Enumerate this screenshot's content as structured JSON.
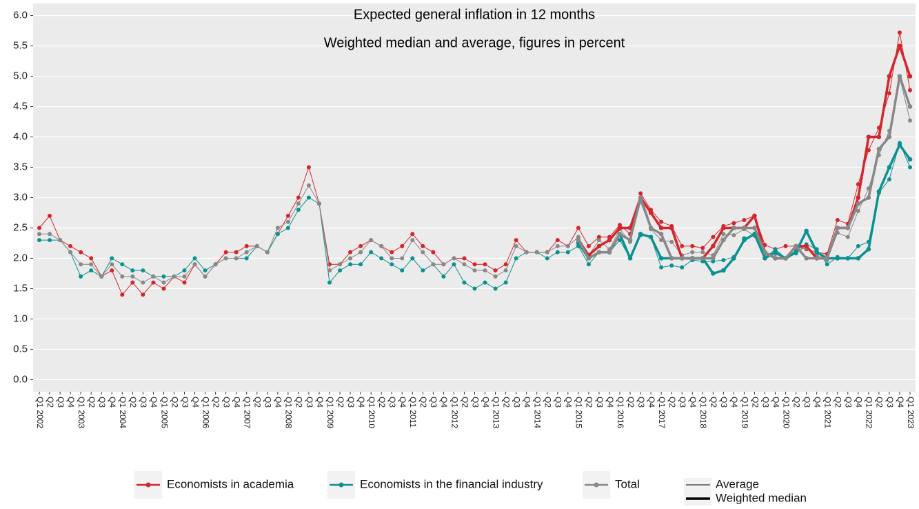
{
  "chart_data": {
    "type": "line",
    "title": "Expected general inflation in 12 months",
    "subtitle": "Weighted median and average, figures in percent",
    "categories": [
      "Q1 2002",
      "Q2",
      "Q3",
      "Q4",
      "Q1 2003",
      "Q2",
      "Q3",
      "Q4",
      "Q1 2004",
      "Q2",
      "Q3",
      "Q4",
      "Q1 2005",
      "Q2",
      "Q3",
      "Q4",
      "Q1 2006",
      "Q2",
      "Q3",
      "Q4",
      "Q1 2007",
      "Q2",
      "Q3",
      "Q4",
      "Q1 2008",
      "Q2",
      "Q3",
      "Q4",
      "Q1 2009",
      "Q2",
      "Q3",
      "Q4",
      "Q1 2010",
      "Q2",
      "Q3",
      "Q4",
      "Q1 2011",
      "Q2",
      "Q3",
      "Q4",
      "Q1 2012",
      "Q2",
      "Q3",
      "Q4",
      "Q1 2013",
      "Q2",
      "Q3",
      "Q4",
      "Q1 2014",
      "Q2",
      "Q3",
      "Q4",
      "Q1 2015",
      "Q2",
      "Q3",
      "Q4",
      "Q1 2016",
      "Q2",
      "Q3",
      "Q4",
      "Q1 2017",
      "Q2",
      "Q3",
      "Q4",
      "Q1 2018",
      "Q2",
      "Q3",
      "Q4",
      "Q1 2019",
      "Q2",
      "Q3",
      "Q4",
      "Q1 2020",
      "Q2",
      "Q3",
      "Q4",
      "Q1 2021",
      "Q2",
      "Q3",
      "Q4",
      "Q1 2022",
      "Q2",
      "Q3",
      "Q4",
      "Q1 2023"
    ],
    "series": [
      {
        "name": "Economists in academia",
        "color": "#d3262c",
        "values": [
          2.5,
          2.7,
          2.3,
          2.2,
          2.1,
          2.0,
          1.7,
          1.8,
          1.4,
          1.6,
          1.4,
          1.6,
          1.5,
          1.7,
          1.6,
          1.9,
          1.7,
          1.9,
          2.1,
          2.1,
          2.2,
          2.2,
          2.1,
          2.4,
          2.7,
          3.0,
          3.5,
          2.9,
          1.9,
          1.9,
          2.1,
          2.2,
          2.3,
          2.2,
          2.1,
          2.2,
          2.4,
          2.2,
          2.1,
          1.9,
          2.0,
          2.0,
          1.9,
          1.9,
          1.8,
          1.9,
          2.3,
          2.1,
          2.1,
          2.1,
          2.3,
          2.2,
          2.5,
          2.2,
          2.35,
          2.35,
          2.55,
          2.4,
          3.07,
          2.8,
          2.6,
          2.53,
          2.2,
          2.2,
          2.17,
          2.35,
          2.53,
          2.58,
          2.63,
          2.7,
          2.22,
          2.15,
          2.2,
          2.2,
          2.15,
          2.1,
          2.07,
          2.63,
          2.57,
          3.22,
          3.78,
          4.15,
          4.72,
          5.72,
          4.77
        ],
        "weighted_median": [
          null,
          null,
          null,
          null,
          null,
          null,
          null,
          null,
          null,
          null,
          null,
          null,
          null,
          null,
          null,
          null,
          null,
          null,
          null,
          null,
          null,
          null,
          null,
          null,
          null,
          null,
          null,
          null,
          null,
          null,
          null,
          null,
          null,
          null,
          null,
          null,
          null,
          null,
          null,
          null,
          null,
          null,
          null,
          null,
          null,
          null,
          null,
          null,
          null,
          null,
          null,
          null,
          2.3,
          2.05,
          2.2,
          2.3,
          2.5,
          2.5,
          3.0,
          2.75,
          2.5,
          2.5,
          2.0,
          2.0,
          2.0,
          2.2,
          2.5,
          2.5,
          2.5,
          2.7,
          2.1,
          2.0,
          2.0,
          2.2,
          2.2,
          2.0,
          2.0,
          2.5,
          2.5,
          3.0,
          4.0,
          4.0,
          5.0,
          5.5,
          5.0
        ]
      },
      {
        "name": "Economists in the financial industry",
        "color": "#0b9191",
        "values": [
          2.3,
          2.3,
          2.3,
          2.1,
          1.7,
          1.8,
          1.7,
          2.0,
          1.9,
          1.8,
          1.8,
          1.7,
          1.7,
          1.7,
          1.8,
          2.0,
          1.8,
          1.9,
          2.0,
          2.0,
          2.0,
          2.2,
          2.1,
          2.4,
          2.5,
          2.8,
          3.0,
          2.9,
          1.6,
          1.8,
          1.9,
          1.9,
          2.1,
          2.0,
          1.9,
          1.8,
          2.0,
          1.8,
          1.9,
          1.7,
          1.9,
          1.6,
          1.5,
          1.6,
          1.5,
          1.6,
          2.0,
          2.1,
          2.1,
          2.0,
          2.1,
          2.1,
          2.2,
          1.9,
          2.1,
          2.1,
          2.3,
          2.0,
          2.38,
          2.35,
          1.85,
          1.88,
          1.85,
          1.97,
          1.95,
          1.95,
          1.97,
          2.02,
          2.33,
          2.38,
          2.0,
          2.15,
          2.0,
          2.08,
          2.23,
          2.15,
          1.9,
          2.02,
          2.0,
          2.2,
          2.27,
          3.08,
          3.3,
          3.9,
          3.5
        ],
        "weighted_median": [
          null,
          null,
          null,
          null,
          null,
          null,
          null,
          null,
          null,
          null,
          null,
          null,
          null,
          null,
          null,
          null,
          null,
          null,
          null,
          null,
          null,
          null,
          null,
          null,
          null,
          null,
          null,
          null,
          null,
          null,
          null,
          null,
          null,
          null,
          null,
          null,
          null,
          null,
          null,
          null,
          null,
          null,
          null,
          null,
          null,
          null,
          null,
          null,
          null,
          null,
          null,
          null,
          2.25,
          2.0,
          2.1,
          2.1,
          2.4,
          2.0,
          2.4,
          2.35,
          2.0,
          2.0,
          2.0,
          2.0,
          2.0,
          1.75,
          1.8,
          2.0,
          2.3,
          2.4,
          2.0,
          2.1,
          2.0,
          2.1,
          2.45,
          2.1,
          2.0,
          2.0,
          2.0,
          2.0,
          2.15,
          3.1,
          3.5,
          3.87,
          3.63
        ]
      },
      {
        "name": "Total",
        "color": "#888888",
        "values": [
          2.4,
          2.4,
          2.3,
          2.1,
          1.9,
          1.9,
          1.7,
          1.9,
          1.7,
          1.7,
          1.6,
          1.7,
          1.6,
          1.7,
          1.7,
          1.9,
          1.7,
          1.9,
          2.0,
          2.0,
          2.1,
          2.2,
          2.1,
          2.5,
          2.6,
          2.9,
          3.2,
          2.9,
          1.8,
          1.9,
          2.0,
          2.1,
          2.3,
          2.2,
          2.0,
          2.0,
          2.3,
          2.1,
          1.9,
          1.9,
          2.0,
          1.9,
          1.8,
          1.8,
          1.7,
          1.8,
          2.2,
          2.1,
          2.1,
          2.1,
          2.2,
          2.2,
          2.35,
          2.05,
          2.3,
          2.15,
          2.48,
          2.27,
          2.93,
          2.48,
          2.3,
          2.27,
          2.05,
          2.1,
          2.1,
          2.05,
          2.4,
          2.38,
          2.48,
          2.37,
          2.05,
          2.07,
          2.0,
          2.13,
          2.17,
          2.05,
          1.97,
          2.42,
          2.35,
          2.78,
          3.15,
          3.7,
          4.1,
          4.98,
          4.27
        ],
        "weighted_median": [
          null,
          null,
          null,
          null,
          null,
          null,
          null,
          null,
          null,
          null,
          null,
          null,
          null,
          null,
          null,
          null,
          null,
          null,
          null,
          null,
          null,
          null,
          null,
          null,
          null,
          null,
          null,
          null,
          null,
          null,
          null,
          null,
          null,
          null,
          null,
          null,
          null,
          null,
          null,
          null,
          null,
          null,
          null,
          null,
          null,
          null,
          null,
          null,
          null,
          null,
          null,
          null,
          2.3,
          2.0,
          2.1,
          2.1,
          2.4,
          2.3,
          3.0,
          2.5,
          2.4,
          2.0,
          2.0,
          2.0,
          2.0,
          2.0,
          2.3,
          2.5,
          2.5,
          2.5,
          2.1,
          2.0,
          2.0,
          2.2,
          2.0,
          2.0,
          2.0,
          2.5,
          2.5,
          2.9,
          3.0,
          3.8,
          4.0,
          5.0,
          4.5
        ]
      }
    ],
    "linetypes": [
      {
        "name": "Average",
        "width": 1
      },
      {
        "name": "Weighted median",
        "width": 3.5
      }
    ],
    "ylim": [
      -0.2,
      6.2
    ],
    "yticks": [
      {
        "value": 0,
        "label": "0.0"
      },
      0.5,
      {
        "value": 1,
        "label": "1.0"
      },
      1.5,
      {
        "value": 2,
        "label": "2.0"
      },
      2.5,
      {
        "value": 3,
        "label": "3.0"
      },
      3.5,
      {
        "value": 4,
        "label": "4.0"
      },
      4.5,
      {
        "value": 5,
        "label": "5.0"
      },
      5.5,
      {
        "value": 6,
        "label": "6.0"
      }
    ],
    "grid": true
  }
}
